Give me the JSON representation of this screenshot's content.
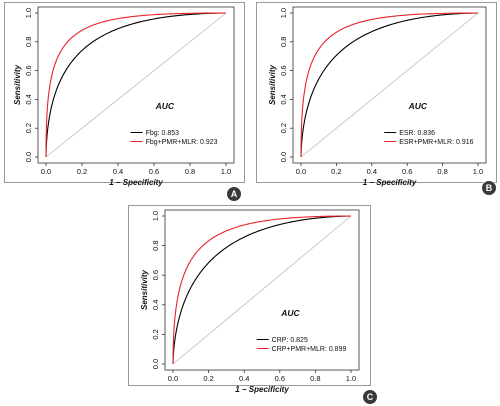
{
  "panels": [
    {
      "letter": "A",
      "chart_data": {
        "type": "line",
        "title": "",
        "xlabel": "1 − Specificity",
        "ylabel": "Sensitivity",
        "xlim": [
          0,
          1
        ],
        "ylim": [
          0,
          1
        ],
        "xticks": [
          "0.0",
          "0.2",
          "0.4",
          "0.6",
          "0.8",
          "1.0"
        ],
        "yticks": [
          "0.0",
          "0.2",
          "0.4",
          "0.6",
          "0.8",
          "1.0"
        ],
        "legend_title": "AUC",
        "legend_position": "bottom-right",
        "grid": false,
        "reference_diagonal": true,
        "series": [
          {
            "name": "Fbg: 0.853",
            "auc": 0.853,
            "color": "#000000"
          },
          {
            "name": "Fbg+PMR+MLR: 0.923",
            "auc": 0.923,
            "color": "#e8232a"
          }
        ]
      }
    },
    {
      "letter": "B",
      "chart_data": {
        "type": "line",
        "title": "",
        "xlabel": "1 − Specificity",
        "ylabel": "Sensitivity",
        "xlim": [
          0,
          1
        ],
        "ylim": [
          0,
          1
        ],
        "xticks": [
          "0.0",
          "0.2",
          "0.4",
          "0.6",
          "0.8",
          "1.0"
        ],
        "yticks": [
          "0.0",
          "0.2",
          "0.4",
          "0.6",
          "0.8",
          "1.0"
        ],
        "legend_title": "AUC",
        "legend_position": "bottom-right",
        "grid": false,
        "reference_diagonal": true,
        "series": [
          {
            "name": "ESR: 0.836",
            "auc": 0.836,
            "color": "#000000"
          },
          {
            "name": "ESR+PMR+MLR: 0.916",
            "auc": 0.916,
            "color": "#e8232a"
          }
        ]
      }
    },
    {
      "letter": "C",
      "chart_data": {
        "type": "line",
        "title": "",
        "xlabel": "1 − Specificity",
        "ylabel": "Sensitivity",
        "xlim": [
          0,
          1
        ],
        "ylim": [
          0,
          1
        ],
        "xticks": [
          "0.0",
          "0.2",
          "0.4",
          "0.6",
          "0.8",
          "1.0"
        ],
        "yticks": [
          "0.0",
          "0.2",
          "0.4",
          "0.6",
          "0.8",
          "1.0"
        ],
        "legend_title": "AUC",
        "legend_position": "bottom-right",
        "grid": false,
        "reference_diagonal": true,
        "series": [
          {
            "name": "CRP: 0.825",
            "auc": 0.825,
            "color": "#000000"
          },
          {
            "name": "CRP+PMR+MLR: 0.899",
            "auc": 0.899,
            "color": "#e8232a"
          }
        ]
      }
    }
  ],
  "colors": {
    "frame": "#999999",
    "axis": "#333333",
    "diagonal": "#bbbbbb",
    "badge": "#3a3a3a"
  }
}
